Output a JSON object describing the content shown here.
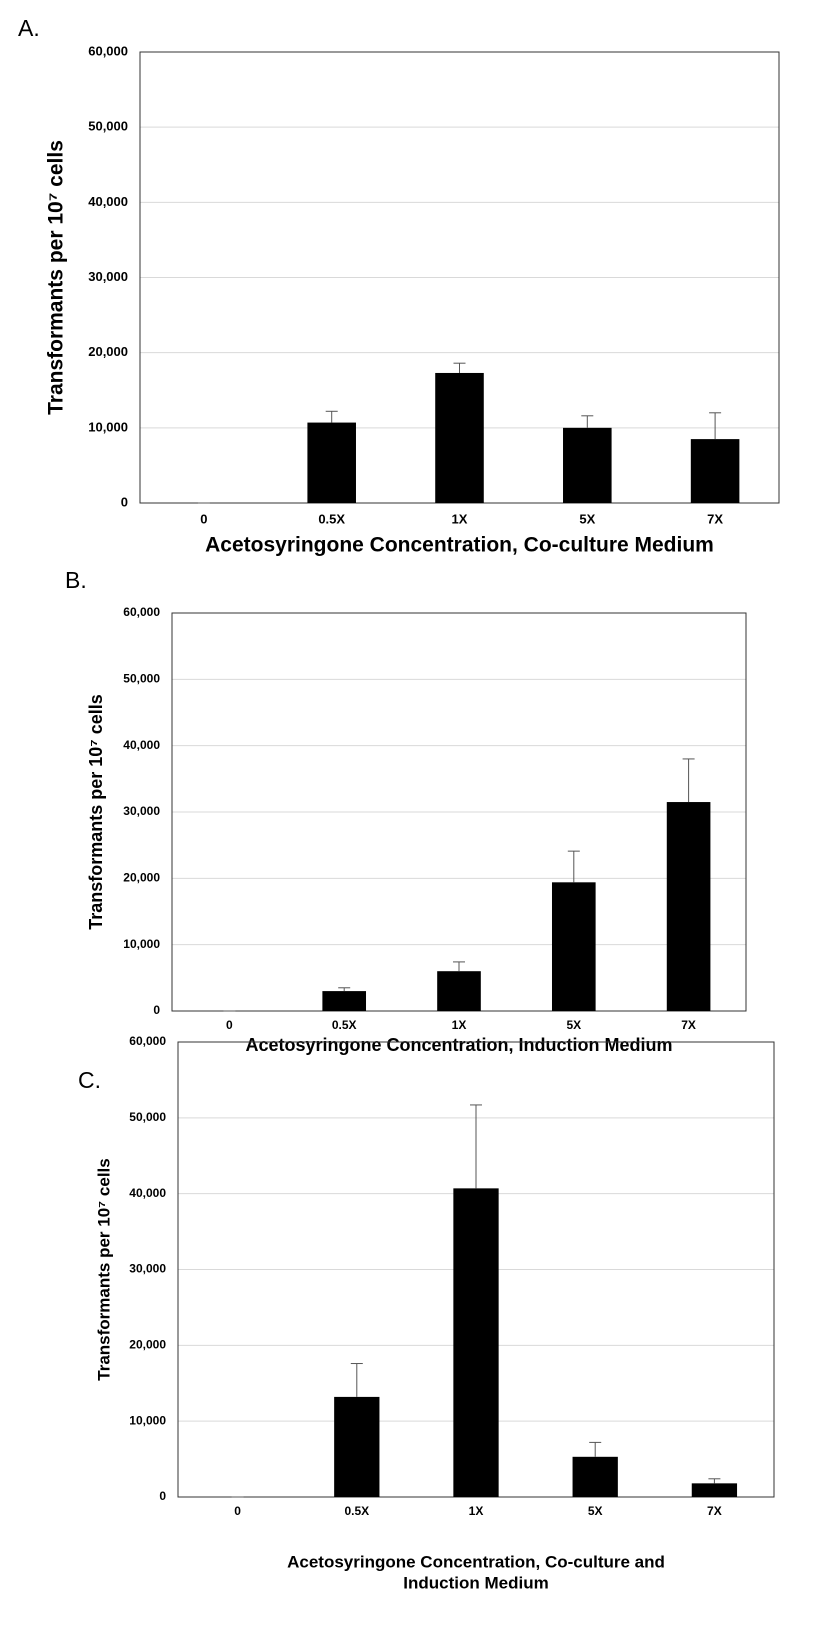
{
  "chart_data": [
    {
      "type": "bar",
      "panel_label": "A.",
      "y_label": "Transformants per 10⁷ cells",
      "x_label": [
        "Acetosyringone Concentration, Co-culture Medium"
      ],
      "categories": [
        "0",
        "0.5X",
        "1X",
        "5X",
        "7X"
      ],
      "values": [
        0,
        10700,
        17300,
        10000,
        8500
      ],
      "errors": [
        0,
        1500,
        1300,
        1600,
        3500
      ],
      "color": "#000000",
      "ylim": [
        0,
        60000
      ],
      "yticks": [
        0,
        {
          "value": 10000,
          "label": "10,000"
        },
        {
          "value": 20000,
          "label": "20,000"
        },
        {
          "value": 30000,
          "label": "30,000"
        },
        {
          "value": 40000,
          "label": "40,000"
        },
        {
          "value": 50000,
          "label": "50,000"
        },
        {
          "value": 60000,
          "label": "60,000"
        }
      ],
      "grid": true
    },
    {
      "type": "bar",
      "panel_label": "B.",
      "y_label": "Transformants per 10⁷ cells",
      "x_label": [
        "Acetosyringone Concentration, Induction Medium"
      ],
      "categories": [
        "0",
        "0.5X",
        "1X",
        "5X",
        "7X"
      ],
      "values": [
        0,
        3000,
        6000,
        19400,
        31500
      ],
      "errors": [
        0,
        500,
        1400,
        4700,
        6500
      ],
      "color": "#000000",
      "ylim": [
        0,
        60000
      ],
      "yticks": [
        0,
        {
          "value": 10000,
          "label": "10,000"
        },
        {
          "value": 20000,
          "label": "20,000"
        },
        {
          "value": 30000,
          "label": "30,000"
        },
        {
          "value": 40000,
          "label": "40,000"
        },
        {
          "value": 50000,
          "label": "50,000"
        },
        {
          "value": 60000,
          "label": "60,000"
        }
      ],
      "grid": true
    },
    {
      "type": "bar",
      "panel_label": "C.",
      "y_label": "Transformants per 10⁷ cells",
      "x_label": [
        "Acetosyringone Concentration, Co-culture and",
        "Induction Medium"
      ],
      "categories": [
        "0",
        "0.5X",
        "1X",
        "5X",
        "7X"
      ],
      "values": [
        0,
        13200,
        40700,
        5300,
        1800
      ],
      "errors": [
        0,
        4400,
        11000,
        1900,
        600
      ],
      "color": "#000000",
      "ylim": [
        0,
        60000
      ],
      "yticks": [
        0,
        {
          "value": 10000,
          "label": "10,000"
        },
        {
          "value": 20000,
          "label": "20,000"
        },
        {
          "value": 30000,
          "label": "30,000"
        },
        {
          "value": 40000,
          "label": "40,000"
        },
        {
          "value": 50000,
          "label": "50,000"
        },
        {
          "value": 60000,
          "label": "60,000"
        }
      ],
      "grid": true
    }
  ]
}
